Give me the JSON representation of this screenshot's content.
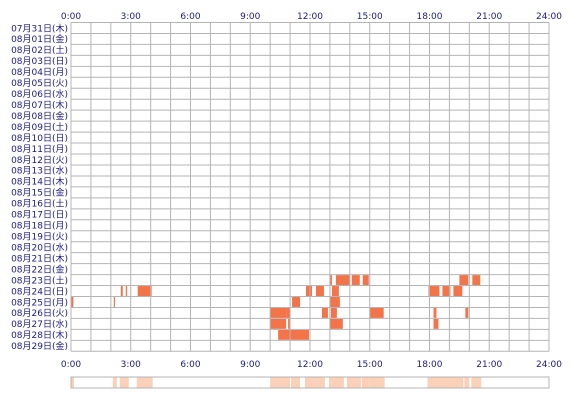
{
  "chart_data": {
    "type": "heatmap",
    "title": "",
    "xlabel": "",
    "ylabel": "",
    "x_range": [
      0,
      24
    ],
    "x_ticks": [
      "0:00",
      "3:00",
      "6:00",
      "9:00",
      "12:00",
      "15:00",
      "18:00",
      "21:00",
      "24:00"
    ],
    "row_labels": [
      "07月31日(木)",
      "08月01日(金)",
      "08月02日(土)",
      "08月03日(日)",
      "08月04日(月)",
      "08月05日(火)",
      "08月06日(水)",
      "08月07日(木)",
      "08月08日(金)",
      "08月09日(土)",
      "08月10日(日)",
      "08月11日(月)",
      "08月12日(火)",
      "08月13日(水)",
      "08月14日(木)",
      "08月15日(金)",
      "08月16日(土)",
      "08月17日(日)",
      "08月18日(月)",
      "08月19日(火)",
      "08月20日(水)",
      "08月21日(木)",
      "08月22日(金)",
      "08月23日(土)",
      "08月24日(日)",
      "08月25日(月)",
      "08月26日(火)",
      "08月27日(水)",
      "08月28日(木)",
      "08月29日(金)"
    ],
    "grid": true,
    "colors": {
      "strong": "#f4744a",
      "light": "#fbd0b8",
      "grid": "#b4b4b4",
      "label": "#1a1a80"
    },
    "activity": [
      {
        "row": "08月23日(土)",
        "intervals": [
          [
            13.0,
            13.1
          ],
          [
            13.3,
            14.0
          ],
          [
            14.1,
            14.5
          ],
          [
            14.65,
            14.95
          ],
          [
            19.5,
            19.95
          ],
          [
            20.15,
            20.55
          ]
        ]
      },
      {
        "row": "08月24日(日)",
        "intervals": [
          [
            2.5,
            2.6
          ],
          [
            2.75,
            2.82
          ],
          [
            3.35,
            4.05
          ],
          [
            11.8,
            12.1
          ],
          [
            12.3,
            12.7
          ],
          [
            13.1,
            13.45
          ],
          [
            17.95,
            18.5
          ],
          [
            18.65,
            19.05
          ],
          [
            19.2,
            19.65
          ]
        ]
      },
      {
        "row": "08月25日(月)",
        "intervals": [
          [
            0.0,
            0.12
          ],
          [
            2.15,
            2.2
          ],
          [
            11.1,
            11.5
          ],
          [
            13.0,
            13.5
          ]
        ]
      },
      {
        "row": "08月26日(火)",
        "intervals": [
          [
            10.0,
            10.8
          ],
          [
            10.8,
            11.0
          ],
          [
            12.6,
            12.9
          ],
          [
            13.05,
            13.35
          ],
          [
            15.0,
            15.7
          ],
          [
            18.2,
            18.35
          ],
          [
            19.8,
            19.95
          ]
        ]
      },
      {
        "row": "08月27日(水)",
        "intervals": [
          [
            10.0,
            10.8
          ],
          [
            10.9,
            11.0
          ],
          [
            13.0,
            13.65
          ],
          [
            18.2,
            18.45
          ]
        ]
      },
      {
        "row": "08月28日(木)",
        "intervals": [
          [
            10.4,
            11.95
          ]
        ]
      }
    ],
    "summary_intervals": [
      [
        0.0,
        0.15
      ],
      [
        2.1,
        2.3
      ],
      [
        2.45,
        2.9
      ],
      [
        3.3,
        4.1
      ],
      [
        10.0,
        11.0
      ],
      [
        11.05,
        11.5
      ],
      [
        11.75,
        12.75
      ],
      [
        12.95,
        13.7
      ],
      [
        13.85,
        14.55
      ],
      [
        14.6,
        15.0
      ],
      [
        15.0,
        15.75
      ],
      [
        17.9,
        19.7
      ],
      [
        19.75,
        20.0
      ],
      [
        20.1,
        20.6
      ]
    ]
  }
}
